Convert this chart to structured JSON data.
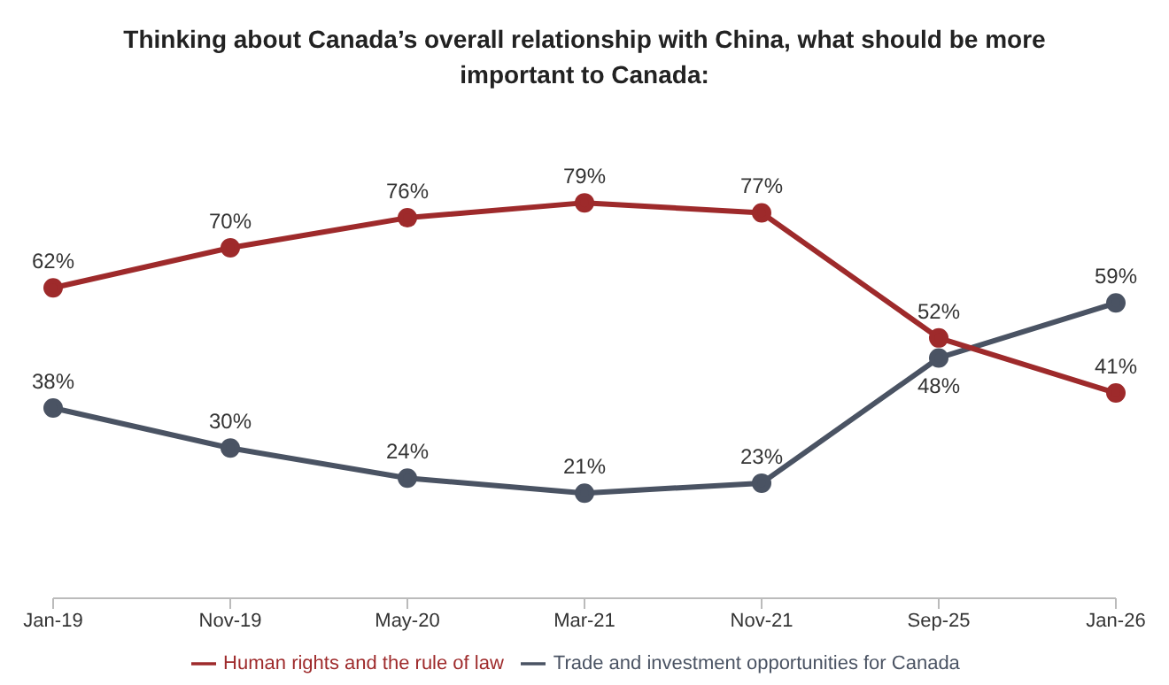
{
  "chart_data": {
    "type": "line",
    "title": "Thinking about Canada’s overall relationship with China, what should be more important to Canada:",
    "categories": [
      "Jan-19",
      "Nov-19",
      "May-20",
      "Mar-21",
      "Nov-21",
      "Sep-25",
      "Jan-26"
    ],
    "series": [
      {
        "name": "Trade and investment opportunities for Canada",
        "color": "#4a5363",
        "values": [
          38,
          30,
          24,
          21,
          23,
          48,
          59
        ],
        "value_labels": [
          "38%",
          "30%",
          "24%",
          "21%",
          "23%",
          "48%",
          "59%"
        ]
      },
      {
        "name": "Human rights and the rule of law",
        "color": "#9e2a2b",
        "values": [
          62,
          70,
          76,
          79,
          77,
          52,
          41
        ],
        "value_labels": [
          "62%",
          "70%",
          "76%",
          "79%",
          "77%",
          "52%",
          "41%"
        ]
      }
    ],
    "legend": "bottom",
    "grid": false,
    "marker": "circle",
    "line_style": "solid",
    "tick_labels": "x"
  }
}
